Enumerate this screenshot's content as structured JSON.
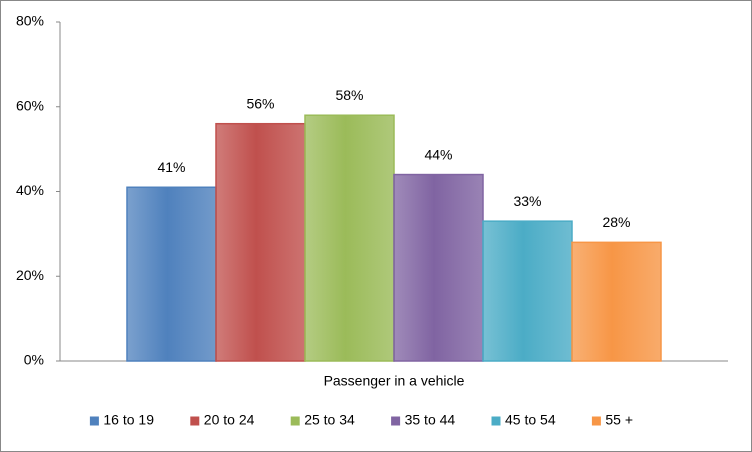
{
  "chart_data": {
    "type": "bar",
    "categories": [
      "Passenger in a vehicle"
    ],
    "series": [
      {
        "name": "16 to 19",
        "color": "#4f81bd",
        "values": [
          41
        ],
        "value_labels": [
          "41%"
        ]
      },
      {
        "name": "20 to 24",
        "color": "#c0504d",
        "values": [
          56
        ],
        "value_labels": [
          "56%"
        ]
      },
      {
        "name": "25 to 34",
        "color": "#9bbb59",
        "values": [
          58
        ],
        "value_labels": [
          "58%"
        ]
      },
      {
        "name": "35 to 44",
        "color": "#8064a2",
        "values": [
          44
        ],
        "value_labels": [
          "44%"
        ]
      },
      {
        "name": "45 to 54",
        "color": "#4bacc6",
        "values": [
          33
        ],
        "value_labels": [
          "33%"
        ]
      },
      {
        "name": "55 +",
        "color": "#f79646",
        "values": [
          28
        ],
        "value_labels": [
          "28%"
        ]
      }
    ],
    "ylim": [
      0,
      80
    ],
    "yticks": [
      {
        "value": 0,
        "label": "0%"
      },
      {
        "value": 20,
        "label": "20%"
      },
      {
        "value": 40,
        "label": "40%"
      },
      {
        "value": 60,
        "label": "60%"
      },
      {
        "value": 80,
        "label": "80%"
      }
    ],
    "grid": false,
    "legend": "bottom"
  }
}
